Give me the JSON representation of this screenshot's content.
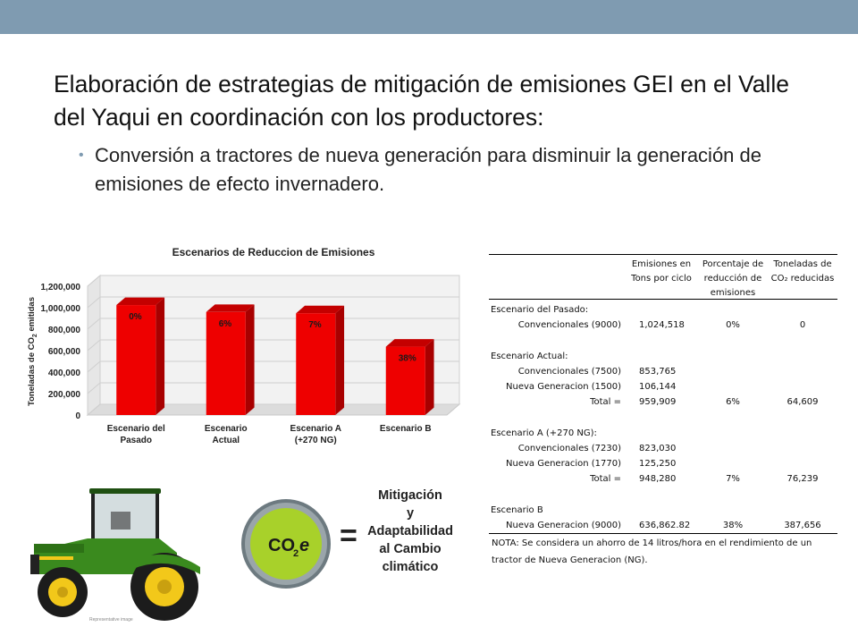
{
  "slide": {
    "title": "Elaboración de estrategias de mitigación de emisiones GEI en el Valle del Yaqui en coordinación con los productores:",
    "bullet": "Conversión a tractores de nueva generación para disminuir la generación de emisiones de efecto invernadero.",
    "accent_color": "#7f9bb1"
  },
  "chart_data": {
    "type": "bar",
    "title": "Escenarios de Reduccion de Emisiones",
    "ylabel_prefix": "Toneladas de CO",
    "ylabel_sub": "2",
    "ylabel_suffix": " emitidas",
    "xlabel": "",
    "categories": [
      [
        "Escenario del",
        "Pasado"
      ],
      [
        "Escenario",
        "Actual"
      ],
      [
        "Escenario A",
        "(+270 NG)"
      ],
      [
        "Escenario B"
      ]
    ],
    "values": [
      1024518,
      959909,
      948280,
      636862.82
    ],
    "data_labels": [
      "0%",
      "6%",
      "7%",
      "38%"
    ],
    "yticks": [
      "0",
      "200,000",
      "400,000",
      "600,000",
      "800,000",
      "1,000,000",
      "1,200,000"
    ],
    "ylim": [
      0,
      1200000
    ],
    "grid": true,
    "bar_color": "#ee0000",
    "bar_side_color": "#a80000",
    "bar_top_color": "#c40000"
  },
  "table": {
    "headers": [
      "Emisiones en Tons por ciclo",
      "Porcentaje de reducción de emisiones",
      "Toneladas de CO₂ reducidas"
    ],
    "header_lines": [
      [
        "Emisiones en",
        "Tons por ciclo"
      ],
      [
        "Porcentaje de",
        "reducción de",
        "emisiones"
      ],
      [
        "Toneladas de",
        "CO₂ reducidas"
      ]
    ],
    "rows": [
      {
        "label": "Escenario del Pasado:",
        "type": "section"
      },
      {
        "label": "Convencionales (9000)",
        "em": "1,024,518",
        "pct": "0%",
        "red": "0"
      },
      {
        "label": "",
        "type": "blank"
      },
      {
        "label": "Escenario Actual:",
        "type": "section"
      },
      {
        "label": "Convencionales (7500)",
        "em": "853,765",
        "pct": "",
        "red": ""
      },
      {
        "label": "Nueva Generacion (1500)",
        "em": "106,144",
        "pct": "",
        "red": ""
      },
      {
        "label": "Total =",
        "em": "959,909",
        "pct": "6%",
        "red": "64,609"
      },
      {
        "label": "",
        "type": "blank"
      },
      {
        "label": "Escenario A (+270 NG):",
        "type": "section"
      },
      {
        "label": "Convencionales (7230)",
        "em": "823,030",
        "pct": "",
        "red": ""
      },
      {
        "label": "Nueva Generacion (1770)",
        "em": "125,250",
        "pct": "",
        "red": ""
      },
      {
        "label": "Total =",
        "em": "948,280",
        "pct": "7%",
        "red": "76,239"
      },
      {
        "label": "",
        "type": "blank"
      },
      {
        "label": "Escenario B",
        "type": "section"
      },
      {
        "label": "Nueva Generacion (9000)",
        "em": "636,862.82",
        "pct": "38%",
        "red": "387,656"
      }
    ],
    "note": "NOTA: Se considera un ahorro de 14 litros/hora en el rendimiento de un tractor de Nueva Generacion (NG)."
  },
  "graphic": {
    "coin_label": "CO",
    "coin_sub": "2",
    "coin_suffix": "e",
    "equals": "=",
    "mitigation_lines": [
      "Mitigación",
      "y",
      "Adaptabilidad",
      "al Cambio",
      "climático"
    ],
    "tractor_green": "#3a8a1e",
    "tractor_yellow": "#f2c81a",
    "coin_green": "#a8d12a",
    "tractor_caption": "Representative image"
  }
}
